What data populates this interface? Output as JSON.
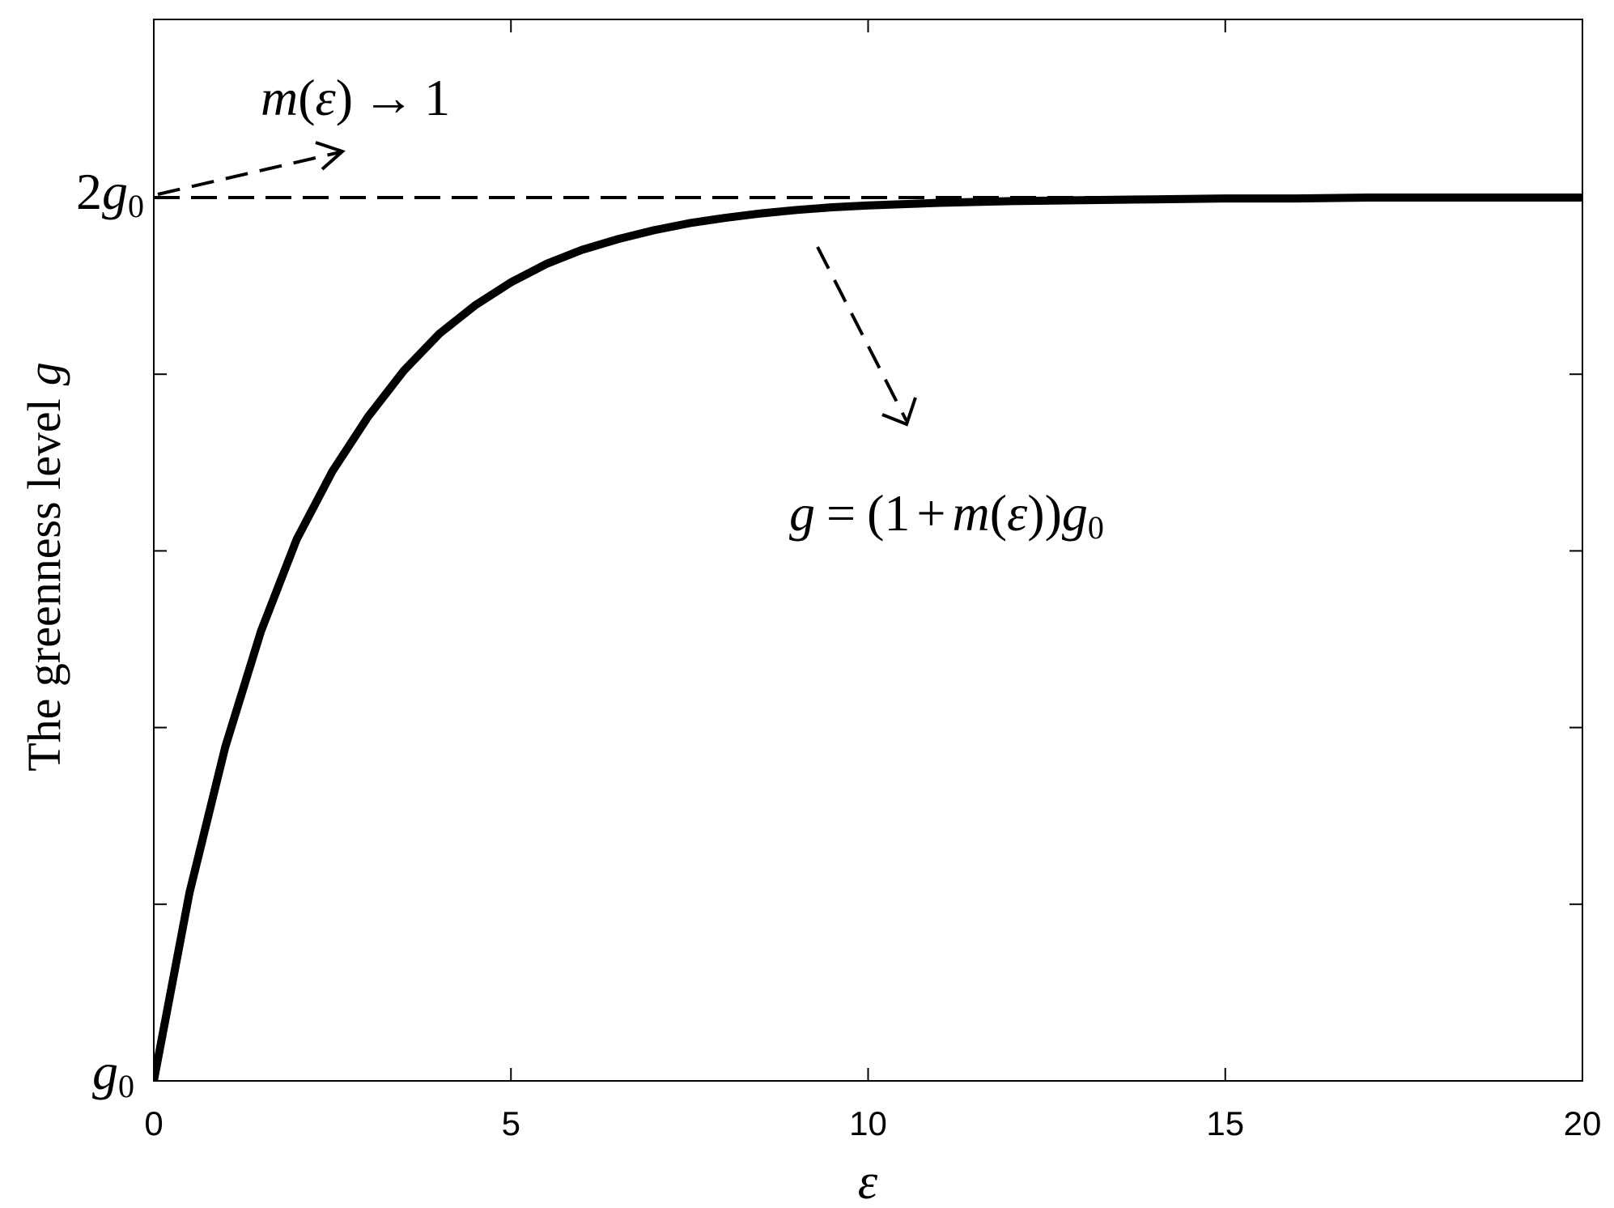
{
  "chart_data": {
    "type": "line",
    "title": "",
    "xlabel": "ε",
    "ylabel_text": "The greenness level",
    "ylabel_var": "g",
    "xlim": [
      0,
      20
    ],
    "ylim": [
      0,
      1
    ],
    "x_ticks": [
      0,
      5,
      10,
      15,
      20
    ],
    "y_ticks": [
      0,
      0.2,
      0.4,
      0.6,
      0.8,
      1.0
    ],
    "y_tick_labels": {
      "bottom": {
        "coef": "",
        "var": "g",
        "sub": "0"
      },
      "top": {
        "coef": "2",
        "var": "g",
        "sub": "0"
      }
    },
    "grid": false,
    "series": [
      {
        "style": "solid",
        "x": [
          0,
          0.5,
          1,
          1.5,
          2,
          2.5,
          3,
          3.5,
          4,
          4.5,
          5,
          5.5,
          6,
          6.5,
          7,
          7.5,
          8,
          8.5,
          9,
          9.5,
          10,
          11,
          12,
          13,
          14,
          15,
          16,
          17,
          18,
          19,
          20
        ],
        "values": [
          0.0,
          0.213,
          0.378,
          0.509,
          0.613,
          0.69,
          0.752,
          0.804,
          0.846,
          0.878,
          0.904,
          0.925,
          0.941,
          0.953,
          0.963,
          0.971,
          0.977,
          0.982,
          0.986,
          0.989,
          0.991,
          0.994,
          0.996,
          0.997,
          0.998,
          0.999,
          0.999,
          1.0,
          1.0,
          1.0,
          1.0
        ]
      },
      {
        "style": "dashed",
        "x": [
          0,
          20
        ],
        "values": [
          1.0,
          1.0
        ]
      }
    ],
    "annotations": [
      {
        "id": "limit",
        "parts": {
          "lhs": "m",
          "open": "(",
          "arg": "ε",
          "close": ")",
          "arrow": "→",
          "rhs": "1"
        }
      },
      {
        "id": "formula",
        "parts": {
          "lhs": "g",
          "eq": "=",
          "open": "(1",
          "plus": "+",
          "m": "m",
          "paren": "(",
          "arg": "ε",
          "close": "))",
          "g": "g",
          "sub": "0"
        }
      }
    ]
  }
}
